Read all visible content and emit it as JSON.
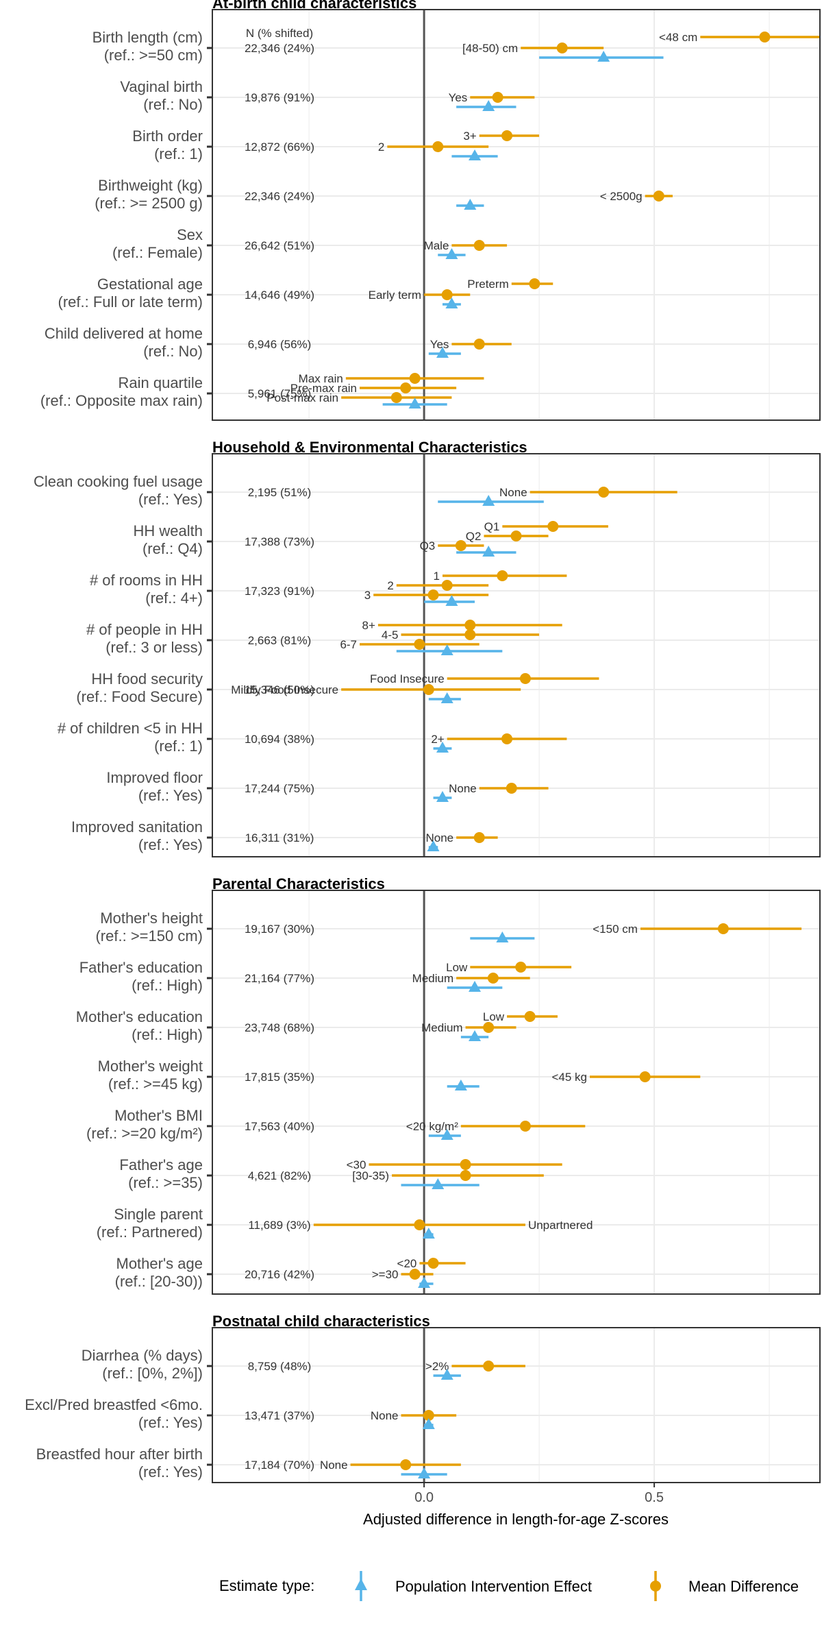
{
  "chart_data": {
    "type": "forest",
    "xlabel": "Adjusted difference in length-for-age Z-scores",
    "xlim": [
      -0.46,
      0.86
    ],
    "xticks": [
      0.0,
      0.5
    ],
    "xtick_labels": [
      "0.0",
      "0.5"
    ],
    "n_header": "N (% shifted)",
    "colors": {
      "mean_difference": "#E69F00",
      "pie": "#56B4E9",
      "zero_line": "#555555",
      "grid": "#ebebeb"
    },
    "legend": {
      "title": "Estimate type:",
      "items": [
        {
          "key": "pie",
          "label": "Population Intervention Effect",
          "marker": "triangle"
        },
        {
          "key": "md",
          "label": "Mean Difference",
          "marker": "circle"
        }
      ],
      "placement": "bottom"
    },
    "panels": [
      {
        "title": "At-birth child characteristics",
        "rows": [
          {
            "line1": "Birth length (cm)",
            "line2": "(ref.: >=50 cm)",
            "n": "22,346 (24%)",
            "md": [
              {
                "label": "<48 cm",
                "est": 0.74,
                "lo": 0.6,
                "hi": 0.86
              },
              {
                "label": "[48-50) cm",
                "est": 0.3,
                "lo": 0.21,
                "hi": 0.39
              }
            ],
            "pie": {
              "est": 0.39,
              "lo": 0.25,
              "hi": 0.52
            }
          },
          {
            "line1": "Vaginal birth",
            "line2": "(ref.: No)",
            "n": "19,876 (91%)",
            "md": [
              {
                "label": "Yes",
                "est": 0.16,
                "lo": 0.1,
                "hi": 0.24
              }
            ],
            "pie": {
              "est": 0.14,
              "lo": 0.07,
              "hi": 0.2
            }
          },
          {
            "line1": "Birth order",
            "line2": "(ref.: 1)",
            "n": "12,872 (66%)",
            "md": [
              {
                "label": "3+",
                "est": 0.18,
                "lo": 0.12,
                "hi": 0.25
              },
              {
                "label": "2",
                "est": 0.03,
                "lo": -0.08,
                "hi": 0.14
              }
            ],
            "pie": {
              "est": 0.11,
              "lo": 0.06,
              "hi": 0.16
            }
          },
          {
            "line1": "Birthweight (kg)",
            "line2": "(ref.: >= 2500 g)",
            "n": "22,346 (24%)",
            "md": [
              {
                "label": "< 2500g",
                "est": 0.51,
                "lo": 0.48,
                "hi": 0.54
              }
            ],
            "pie": {
              "est": 0.1,
              "lo": 0.07,
              "hi": 0.13
            }
          },
          {
            "line1": "Sex",
            "line2": "(ref.: Female)",
            "n": "26,642 (51%)",
            "md": [
              {
                "label": "Male",
                "est": 0.12,
                "lo": 0.06,
                "hi": 0.18
              }
            ],
            "pie": {
              "est": 0.06,
              "lo": 0.03,
              "hi": 0.09
            }
          },
          {
            "line1": "Gestational age",
            "line2": "(ref.: Full or late term)",
            "n": "14,646 (49%)",
            "md": [
              {
                "label": "Preterm",
                "est": 0.24,
                "lo": 0.19,
                "hi": 0.28
              },
              {
                "label": "Early term",
                "est": 0.05,
                "lo": 0.0,
                "hi": 0.1
              }
            ],
            "pie": {
              "est": 0.06,
              "lo": 0.04,
              "hi": 0.08
            }
          },
          {
            "line1": "Child delivered at home",
            "line2": "(ref.: No)",
            "n": "6,946 (56%)",
            "md": [
              {
                "label": "Yes",
                "est": 0.12,
                "lo": 0.06,
                "hi": 0.19
              }
            ],
            "pie": {
              "est": 0.04,
              "lo": 0.01,
              "hi": 0.08
            }
          },
          {
            "line1": "Rain quartile",
            "line2": "(ref.: Opposite max rain)",
            "n": "5,961 (75%)",
            "md": [
              {
                "label": "Max rain",
                "est": -0.02,
                "lo": -0.17,
                "hi": 0.13
              },
              {
                "label": "Pre-max rain",
                "est": -0.04,
                "lo": -0.14,
                "hi": 0.07
              },
              {
                "label": "Post-max rain",
                "est": -0.06,
                "lo": -0.18,
                "hi": 0.06
              }
            ],
            "pie": {
              "est": -0.02,
              "lo": -0.09,
              "hi": 0.05
            }
          }
        ]
      },
      {
        "title": "Household & Environmental Characteristics",
        "rows": [
          {
            "line1": "Clean cooking fuel usage",
            "line2": "(ref.: Yes)",
            "n": "2,195 (51%)",
            "md": [
              {
                "label": "None",
                "est": 0.39,
                "lo": 0.23,
                "hi": 0.55
              }
            ],
            "pie": {
              "est": 0.14,
              "lo": 0.03,
              "hi": 0.26
            }
          },
          {
            "line1": "HH wealth",
            "line2": "(ref.: Q4)",
            "n": "17,388 (73%)",
            "md": [
              {
                "label": "Q1",
                "est": 0.28,
                "lo": 0.17,
                "hi": 0.4
              },
              {
                "label": "Q2",
                "est": 0.2,
                "lo": 0.13,
                "hi": 0.27
              },
              {
                "label": "Q3",
                "est": 0.08,
                "lo": 0.03,
                "hi": 0.13
              }
            ],
            "pie": {
              "est": 0.14,
              "lo": 0.07,
              "hi": 0.2
            }
          },
          {
            "line1": "# of rooms in HH",
            "line2": "(ref.: 4+)",
            "n": "17,323 (91%)",
            "md": [
              {
                "label": "1",
                "est": 0.17,
                "lo": 0.04,
                "hi": 0.31
              },
              {
                "label": "2",
                "est": 0.05,
                "lo": -0.06,
                "hi": 0.14
              },
              {
                "label": "3",
                "est": 0.02,
                "lo": -0.11,
                "hi": 0.14
              }
            ],
            "pie": {
              "est": 0.06,
              "lo": 0.0,
              "hi": 0.11
            }
          },
          {
            "line1": "# of people in HH",
            "line2": "(ref.: 3 or less)",
            "n": "2,663 (81%)",
            "md": [
              {
                "label": "8+",
                "est": 0.1,
                "lo": -0.1,
                "hi": 0.3
              },
              {
                "label": "4-5",
                "est": 0.1,
                "lo": -0.05,
                "hi": 0.25
              },
              {
                "label": "6-7",
                "est": -0.01,
                "lo": -0.14,
                "hi": 0.12
              }
            ],
            "pie": {
              "est": 0.05,
              "lo": -0.06,
              "hi": 0.17
            }
          },
          {
            "line1": "HH food security",
            "line2": "(ref.: Food Secure)",
            "n": "15,346 (50%)",
            "md": [
              {
                "label": "Food Insecure",
                "est": 0.22,
                "lo": 0.05,
                "hi": 0.38
              },
              {
                "label": "Mildly Food Insecure",
                "est": 0.01,
                "lo": -0.18,
                "hi": 0.21
              }
            ],
            "pie": {
              "est": 0.05,
              "lo": 0.01,
              "hi": 0.08
            }
          },
          {
            "line1": "# of children <5 in HH",
            "line2": "(ref.: 1)",
            "n": "10,694 (38%)",
            "md": [
              {
                "label": "2+",
                "est": 0.18,
                "lo": 0.05,
                "hi": 0.31
              }
            ],
            "pie": {
              "est": 0.04,
              "lo": 0.02,
              "hi": 0.06
            }
          },
          {
            "line1": "Improved floor",
            "line2": "(ref.: Yes)",
            "n": "17,244 (75%)",
            "md": [
              {
                "label": "None",
                "est": 0.19,
                "lo": 0.12,
                "hi": 0.27
              }
            ],
            "pie": {
              "est": 0.04,
              "lo": 0.02,
              "hi": 0.06
            }
          },
          {
            "line1": "Improved sanitation",
            "line2": "(ref.: Yes)",
            "n": "16,311 (31%)",
            "md": [
              {
                "label": "None",
                "est": 0.12,
                "lo": 0.07,
                "hi": 0.16
              }
            ],
            "pie": {
              "est": 0.02,
              "lo": 0.01,
              "hi": 0.03
            }
          }
        ]
      },
      {
        "title": "Parental Characteristics",
        "rows": [
          {
            "line1": "Mother's height",
            "line2": "(ref.: >=150 cm)",
            "n": "19,167 (30%)",
            "md": [
              {
                "label": "<150 cm",
                "est": 0.65,
                "lo": 0.47,
                "hi": 0.82
              }
            ],
            "pie": {
              "est": 0.17,
              "lo": 0.1,
              "hi": 0.24
            }
          },
          {
            "line1": "Father's education",
            "line2": "(ref.: High)",
            "n": "21,164 (77%)",
            "md": [
              {
                "label": "Low",
                "est": 0.21,
                "lo": 0.1,
                "hi": 0.32
              },
              {
                "label": "Medium",
                "est": 0.15,
                "lo": 0.07,
                "hi": 0.23
              }
            ],
            "pie": {
              "est": 0.11,
              "lo": 0.05,
              "hi": 0.17
            }
          },
          {
            "line1": "Mother's education",
            "line2": "(ref.: High)",
            "n": "23,748 (68%)",
            "md": [
              {
                "label": "Low",
                "est": 0.23,
                "lo": 0.18,
                "hi": 0.29
              },
              {
                "label": "Medium",
                "est": 0.14,
                "lo": 0.09,
                "hi": 0.2
              }
            ],
            "pie": {
              "est": 0.11,
              "lo": 0.08,
              "hi": 0.14
            }
          },
          {
            "line1": "Mother's weight",
            "line2": "(ref.: >=45 kg)",
            "n": "17,815 (35%)",
            "md": [
              {
                "label": "<45 kg",
                "est": 0.48,
                "lo": 0.36,
                "hi": 0.6
              }
            ],
            "pie": {
              "est": 0.08,
              "lo": 0.05,
              "hi": 0.12
            }
          },
          {
            "line1": "Mother's BMI",
            "line2": "(ref.: >=20 kg/m²)",
            "n": "17,563 (40%)",
            "md": [
              {
                "label": "<20 kg/m²",
                "est": 0.22,
                "lo": 0.08,
                "hi": 0.35
              }
            ],
            "pie": {
              "est": 0.05,
              "lo": 0.01,
              "hi": 0.08
            }
          },
          {
            "line1": "Father's age",
            "line2": "(ref.: >=35)",
            "n": "4,621 (82%)",
            "md": [
              {
                "label": "<30",
                "est": 0.09,
                "lo": -0.12,
                "hi": 0.3
              },
              {
                "label": "[30-35)",
                "est": 0.09,
                "lo": -0.07,
                "hi": 0.26
              }
            ],
            "pie": {
              "est": 0.03,
              "lo": -0.05,
              "hi": 0.12
            }
          },
          {
            "line1": "Single parent",
            "line2": "(ref.: Partnered)",
            "n": "11,689 (3%)",
            "md": [
              {
                "label": "Unpartnered",
                "est": -0.01,
                "lo": -0.24,
                "hi": 0.22
              }
            ],
            "pie": {
              "est": 0.01,
              "lo": 0.0,
              "hi": 0.02
            }
          },
          {
            "line1": "Mother's age",
            "line2": "(ref.: [20-30))",
            "n": "20,716 (42%)",
            "md": [
              {
                "label": "<20",
                "est": 0.02,
                "lo": -0.01,
                "hi": 0.09
              },
              {
                "label": ">=30",
                "est": -0.02,
                "lo": -0.05,
                "hi": 0.02
              }
            ],
            "pie": {
              "est": 0.0,
              "lo": -0.01,
              "hi": 0.02
            }
          }
        ]
      },
      {
        "title": "Postnatal child characteristics",
        "rows": [
          {
            "line1": "Diarrhea (% days)",
            "line2": "(ref.: [0%, 2%])",
            "n": "8,759 (48%)",
            "md": [
              {
                "label": ">2%",
                "est": 0.14,
                "lo": 0.06,
                "hi": 0.22
              }
            ],
            "pie": {
              "est": 0.05,
              "lo": 0.02,
              "hi": 0.08
            }
          },
          {
            "line1": "Excl/Pred breastfed <6mo.",
            "line2": "(ref.: Yes)",
            "n": "13,471 (37%)",
            "md": [
              {
                "label": "None",
                "est": 0.01,
                "lo": -0.05,
                "hi": 0.07
              }
            ],
            "pie": {
              "est": 0.01,
              "lo": 0.0,
              "hi": 0.02
            }
          },
          {
            "line1": "Breastfed hour after birth",
            "line2": "(ref.: Yes)",
            "n": "17,184 (70%)",
            "md": [
              {
                "label": "None",
                "est": -0.04,
                "lo": -0.16,
                "hi": 0.08
              }
            ],
            "pie": {
              "est": 0.0,
              "lo": -0.05,
              "hi": 0.05
            }
          }
        ]
      }
    ]
  }
}
